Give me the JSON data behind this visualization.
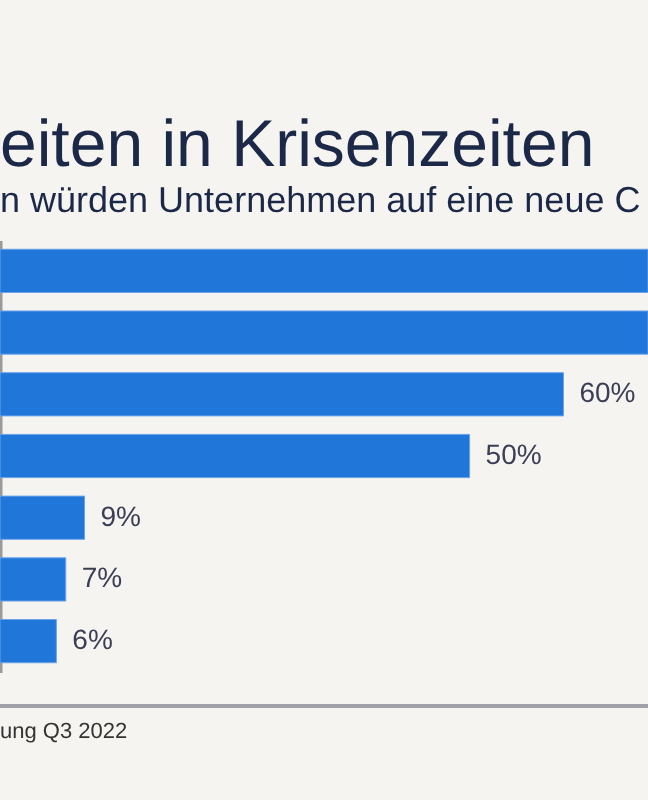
{
  "chart_data": {
    "type": "bar",
    "orientation": "horizontal",
    "title": "eiten in Krisenzeiten",
    "subtitle": "n würden Unternehmen auf eine neue C",
    "categories": [
      null,
      null,
      null,
      null,
      null,
      null,
      null
    ],
    "values": [
      69,
      69,
      60,
      50,
      9,
      7,
      6
    ],
    "value_labels": [
      null,
      null,
      "60%",
      "50%",
      "9%",
      "7%",
      "6%"
    ],
    "color": "#2176d9",
    "xlim": [
      0,
      69
    ],
    "grid": false,
    "tick_labels": false,
    "annotations": [
      "ung Q3 2022"
    ]
  }
}
